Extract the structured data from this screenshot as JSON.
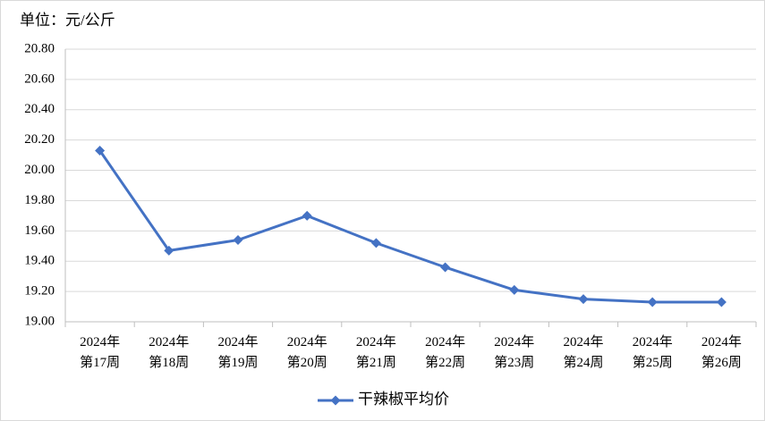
{
  "chart_data": {
    "type": "line",
    "annotations": [
      "单位：元/公斤"
    ],
    "categories": [
      [
        "2024年",
        "第17周"
      ],
      [
        "2024年",
        "第18周"
      ],
      [
        "2024年",
        "第19周"
      ],
      [
        "2024年",
        "第20周"
      ],
      [
        "2024年",
        "第21周"
      ],
      [
        "2024年",
        "第22周"
      ],
      [
        "2024年",
        "第23周"
      ],
      [
        "2024年",
        "第24周"
      ],
      [
        "2024年",
        "第25周"
      ],
      [
        "2024年",
        "第26周"
      ]
    ],
    "series": [
      {
        "name": "干辣椒平均价",
        "color": "#4472c4",
        "values": [
          20.13,
          19.47,
          19.54,
          19.7,
          19.52,
          19.36,
          19.21,
          19.15,
          19.13,
          19.13
        ]
      }
    ],
    "ylim": [
      19.0,
      20.8
    ],
    "yticks": [
      {
        "value": 19.0,
        "label": "19.00"
      },
      {
        "value": 19.2,
        "label": "19.20"
      },
      {
        "value": 19.4,
        "label": "19.40"
      },
      {
        "value": 19.6,
        "label": "19.60"
      },
      {
        "value": 19.8,
        "label": "19.80"
      },
      {
        "value": 20.0,
        "label": "20.00"
      },
      {
        "value": 20.2,
        "label": "20.20"
      },
      {
        "value": 20.4,
        "label": "20.40"
      },
      {
        "value": 20.6,
        "label": "20.60"
      },
      {
        "value": 20.8,
        "label": "20.80"
      }
    ],
    "grid": true,
    "legend": "bottom"
  }
}
